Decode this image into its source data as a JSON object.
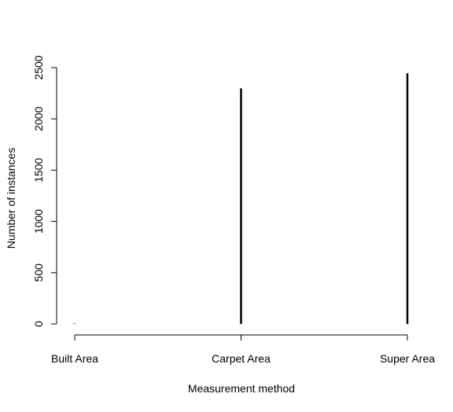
{
  "chart_data": {
    "type": "bar",
    "style": "histogram-lines",
    "categories": [
      "Built Area",
      "Carpet Area",
      "Super Area"
    ],
    "values": [
      5,
      2298,
      2444
    ],
    "xlabel": "Measurement method",
    "ylabel": "Number of instances",
    "ylim": [
      0,
      2500
    ],
    "yticks": [
      0,
      500,
      1000,
      1500,
      2000,
      2500
    ],
    "grid": false,
    "legend": "none",
    "colors": {
      "bars": "#000000",
      "axes": "#000000",
      "background": "#ffffff"
    }
  }
}
